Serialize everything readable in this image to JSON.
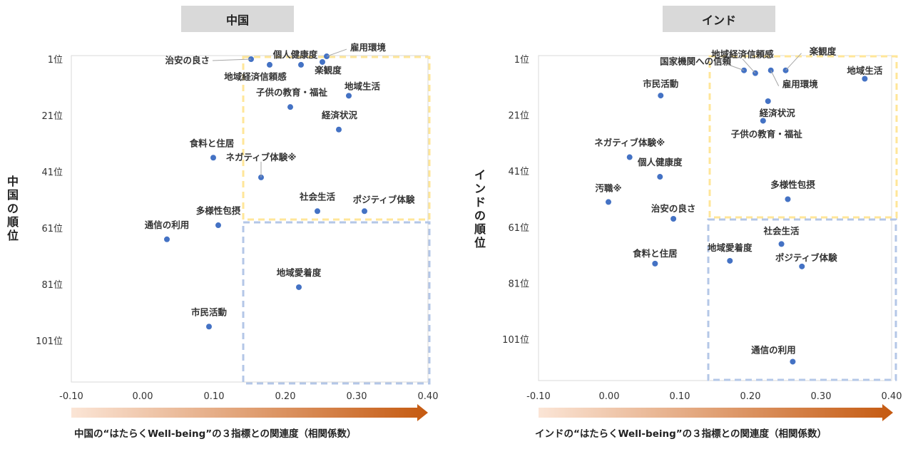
{
  "colors": {
    "point": "#4472c4",
    "highBox": "#ffe699",
    "lowBox": "#b4c7e7",
    "arrowStart": "#fbe5d6",
    "arrowEnd": "#c55a11",
    "titleBg": "#d9d9d9"
  },
  "chart_data": [
    {
      "type": "scatter",
      "title": "中国",
      "xlabel": "中国の“はたらくWell-being”の３指標との関連度（相関係数）",
      "ylabel": "中国の順位",
      "xlim": [
        -0.1,
        0.4
      ],
      "ylim": [
        1,
        117
      ],
      "y_inverted": true,
      "xticks": [
        "-0.10",
        "0.00",
        "0.10",
        "0.20",
        "0.30",
        "0.40"
      ],
      "yticks": [
        "1位",
        "21位",
        "41位",
        "61位",
        "81位",
        "101位"
      ],
      "points": [
        {
          "label": "治安の良さ",
          "x": 0.152,
          "y": 1
        },
        {
          "label": "個人健康度",
          "x": 0.222,
          "y": 3
        },
        {
          "label": "雇用環境",
          "x": 0.258,
          "y": 0
        },
        {
          "label": "楽観度",
          "x": 0.252,
          "y": 2
        },
        {
          "label": "地域経済信頼感",
          "x": 0.178,
          "y": 3
        },
        {
          "label": "地域生活",
          "x": 0.289,
          "y": 14
        },
        {
          "label": "子供の教育・福祉",
          "x": 0.207,
          "y": 18
        },
        {
          "label": "経済状況",
          "x": 0.275,
          "y": 26
        },
        {
          "label": "食料と住居",
          "x": 0.099,
          "y": 36
        },
        {
          "label": "ネガティブ体験※",
          "x": 0.166,
          "y": 43
        },
        {
          "label": "社会生活",
          "x": 0.245,
          "y": 55
        },
        {
          "label": "ポジティブ体験",
          "x": 0.311,
          "y": 55
        },
        {
          "label": "多様性包摂",
          "x": 0.106,
          "y": 60
        },
        {
          "label": "通信の利用",
          "x": 0.034,
          "y": 65
        },
        {
          "label": "地域愛着度",
          "x": 0.219,
          "y": 82
        },
        {
          "label": "市民活動",
          "x": 0.093,
          "y": 96
        }
      ]
    },
    {
      "type": "scatter",
      "title": "インド",
      "xlabel": "インドの“はたらくWell-being”の３指標との関連度（相関係数）",
      "ylabel": "インドの順位",
      "xlim": [
        -0.1,
        0.4
      ],
      "ylim": [
        1,
        117
      ],
      "y_inverted": true,
      "xticks": [
        "-0.10",
        "0.00",
        "0.10",
        "0.20",
        "0.30",
        "0.40"
      ],
      "yticks": [
        "1位",
        "21位",
        "41位",
        "61位",
        "81位",
        "101位"
      ],
      "points": [
        {
          "label": "地域経済信頼感",
          "x": 0.207,
          "y": 6
        },
        {
          "label": "国家機関への信頼",
          "x": 0.191,
          "y": 5
        },
        {
          "label": "楽観度",
          "x": 0.25,
          "y": 5
        },
        {
          "label": "雇用環境",
          "x": 0.229,
          "y": 5
        },
        {
          "label": "地域生活",
          "x": 0.362,
          "y": 8
        },
        {
          "label": "市民活動",
          "x": 0.073,
          "y": 14
        },
        {
          "label": "経済状況",
          "x": 0.225,
          "y": 16
        },
        {
          "label": "子供の教育・福祉",
          "x": 0.218,
          "y": 23
        },
        {
          "label": "ネガティブ体験※",
          "x": 0.029,
          "y": 36
        },
        {
          "label": "個人健康度",
          "x": 0.072,
          "y": 43
        },
        {
          "label": "多様性包摂",
          "x": 0.253,
          "y": 51
        },
        {
          "label": "汚職※",
          "x": -0.001,
          "y": 52
        },
        {
          "label": "治安の良さ",
          "x": 0.091,
          "y": 58
        },
        {
          "label": "社会生活",
          "x": 0.244,
          "y": 67
        },
        {
          "label": "地域愛着度",
          "x": 0.171,
          "y": 73
        },
        {
          "label": "食料と住居",
          "x": 0.065,
          "y": 74
        },
        {
          "label": "ポジティブ体験",
          "x": 0.273,
          "y": 75
        },
        {
          "label": "通信の利用",
          "x": 0.26,
          "y": 109
        }
      ]
    }
  ]
}
